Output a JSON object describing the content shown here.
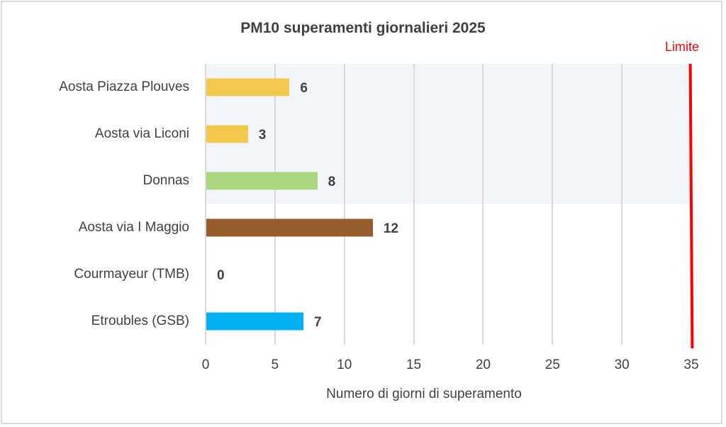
{
  "chart_data": {
    "type": "bar",
    "orientation": "horizontal",
    "title": "PM10 superamenti giornalieri 2025",
    "xlabel": "Numero di giorni di superamento",
    "ylabel": "",
    "categories": [
      "Aosta Piazza Plouves",
      "Aosta via Liconi",
      "Donnas",
      "Aosta via I Maggio",
      "Courmayeur (TMB)",
      "Etroubles (GSB)"
    ],
    "values": [
      6,
      3,
      8,
      12,
      0,
      7
    ],
    "colors": [
      "#f2c94c",
      "#f2c94c",
      "#a9d67f",
      "#965c2c",
      "#00b0f0",
      "#00b0f0"
    ],
    "xlim": [
      0,
      35
    ],
    "xticks": [
      "0",
      "5",
      "10",
      "15",
      "20",
      "25",
      "30",
      "35"
    ],
    "grid": true,
    "reference_line": {
      "label": "Limite",
      "value": 35,
      "color": "#ff0000"
    },
    "shaded_region_rows": [
      "Aosta Piazza Plouves",
      "Aosta via Liconi",
      "Donnas"
    ],
    "shade_color": "#f2f5fa"
  }
}
